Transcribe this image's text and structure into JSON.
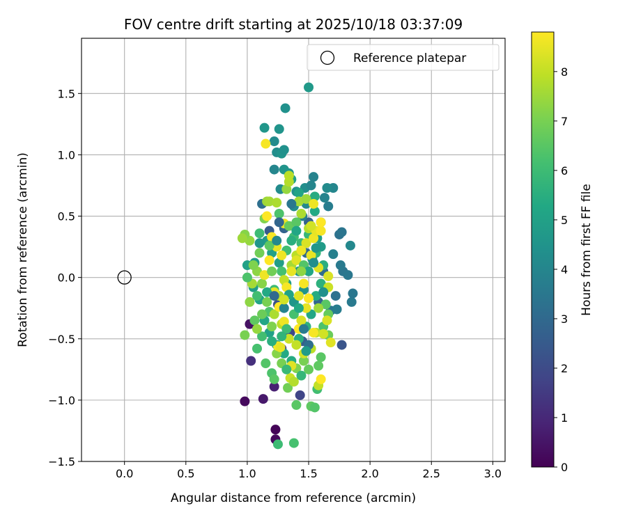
{
  "chart_data": {
    "type": "scatter",
    "title": "FOV centre drift starting at 2025/10/18 03:37:09",
    "xlabel": "Angular distance from reference (arcmin)",
    "ylabel": "Rotation from reference (arcmin)",
    "xlim": [
      -0.35,
      3.1
    ],
    "ylim": [
      -1.5,
      1.95
    ],
    "xticks": [
      0.0,
      0.5,
      1.0,
      1.5,
      2.0,
      2.5,
      3.0
    ],
    "xtick_labels": [
      "0.0",
      "0.5",
      "1.0",
      "1.5",
      "2.0",
      "2.5",
      "3.0"
    ],
    "yticks": [
      -1.5,
      -1.0,
      -0.5,
      0.0,
      0.5,
      1.0,
      1.5
    ],
    "ytick_labels": [
      "−1.5",
      "−1.0",
      "−0.5",
      "0.0",
      "0.5",
      "1.0",
      "1.5"
    ],
    "grid": true,
    "legend": {
      "placement": "top-right",
      "label": "Reference platepar"
    },
    "reference_point": {
      "x": 0.0,
      "y": 0.0
    },
    "colorbar": {
      "label": "Hours from first FF file",
      "colormap": "viridis",
      "range": [
        0,
        8.8
      ],
      "ticks": [
        0,
        1,
        2,
        3,
        4,
        5,
        6,
        7,
        8
      ],
      "tick_labels": [
        "0",
        "1",
        "2",
        "3",
        "4",
        "5",
        "6",
        "7",
        "8"
      ]
    },
    "points": [
      [
        0.98,
        -1.01,
        0.2
      ],
      [
        1.23,
        -1.24,
        0.1
      ],
      [
        1.23,
        -1.32,
        0.2
      ],
      [
        1.13,
        -0.99,
        0.6
      ],
      [
        1.02,
        -0.38,
        0.4
      ],
      [
        1.03,
        -0.68,
        1.2
      ],
      [
        1.22,
        -0.89,
        0.8
      ],
      [
        1.43,
        -0.96,
        1.8
      ],
      [
        1.77,
        -0.55,
        2.3
      ],
      [
        1.28,
        -0.58,
        1.5
      ],
      [
        1.35,
        -0.45,
        1.9
      ],
      [
        1.45,
        -0.52,
        2.6
      ],
      [
        1.25,
        -0.22,
        2.2
      ],
      [
        1.18,
        0.38,
        2.5
      ],
      [
        1.12,
        0.6,
        3.2
      ],
      [
        1.3,
        0.4,
        2.8
      ],
      [
        1.5,
        0.45,
        2.7
      ],
      [
        1.58,
        -0.2,
        2.9
      ],
      [
        1.62,
        0.05,
        3.1
      ],
      [
        1.48,
        0.2,
        3.0
      ],
      [
        1.75,
        0.35,
        3.3
      ],
      [
        1.78,
        0.05,
        3.4
      ],
      [
        1.82,
        0.02,
        3.5
      ],
      [
        1.85,
        -0.2,
        3.6
      ],
      [
        1.86,
        -0.13,
        3.5
      ],
      [
        1.72,
        -0.15,
        3.3
      ],
      [
        1.68,
        -0.27,
        3.5
      ],
      [
        1.73,
        -0.26,
        3.7
      ],
      [
        1.76,
        0.1,
        3.6
      ],
      [
        1.7,
        0.19,
        3.8
      ],
      [
        1.77,
        0.37,
        3.4
      ],
      [
        1.84,
        0.26,
        4.1
      ],
      [
        1.63,
        0.65,
        3.9
      ],
      [
        1.66,
        0.58,
        3.7
      ],
      [
        1.7,
        0.73,
        4.0
      ],
      [
        1.65,
        0.73,
        4.2
      ],
      [
        1.48,
        0.6,
        4.1
      ],
      [
        1.45,
        0.5,
        3.8
      ],
      [
        1.38,
        0.58,
        4.2
      ],
      [
        1.4,
        0.7,
        4.4
      ],
      [
        1.47,
        0.73,
        4.3
      ],
      [
        1.52,
        0.75,
        4.0
      ],
      [
        1.54,
        0.82,
        3.9
      ],
      [
        1.27,
        0.72,
        4.2
      ],
      [
        1.3,
        0.88,
        4.5
      ],
      [
        1.34,
        0.85,
        4.6
      ],
      [
        1.22,
        0.88,
        4.0
      ],
      [
        1.24,
        1.02,
        4.3
      ],
      [
        1.28,
        1.01,
        4.5
      ],
      [
        1.3,
        1.04,
        4.4
      ],
      [
        1.22,
        1.11,
        4.2
      ],
      [
        1.26,
        1.21,
        4.5
      ],
      [
        1.14,
        1.22,
        4.6
      ],
      [
        1.31,
        1.38,
        4.4
      ],
      [
        1.5,
        1.55,
        4.7
      ],
      [
        1.36,
        0.8,
        5.0
      ],
      [
        1.42,
        0.69,
        5.1
      ],
      [
        1.55,
        0.66,
        5.4
      ],
      [
        1.55,
        0.54,
        5.3
      ],
      [
        1.6,
        0.45,
        5.0
      ],
      [
        1.57,
        0.32,
        4.9
      ],
      [
        1.6,
        0.25,
        4.8
      ],
      [
        1.53,
        0.15,
        4.7
      ],
      [
        1.42,
        0.05,
        4.6
      ],
      [
        1.46,
        -0.1,
        4.5
      ],
      [
        1.38,
        -0.2,
        4.6
      ],
      [
        1.32,
        -0.05,
        4.8
      ],
      [
        1.26,
        0.12,
        4.9
      ],
      [
        1.2,
        0.2,
        5.0
      ],
      [
        1.16,
        0.3,
        4.7
      ],
      [
        1.1,
        0.28,
        4.6
      ],
      [
        1.06,
        0.12,
        4.8
      ],
      [
        1.0,
        0.1,
        5.0
      ],
      [
        1.05,
        -0.08,
        4.9
      ],
      [
        1.1,
        -0.18,
        5.1
      ],
      [
        1.14,
        -0.35,
        5.2
      ],
      [
        1.18,
        -0.45,
        5.0
      ],
      [
        1.24,
        -0.55,
        4.8
      ],
      [
        1.3,
        -0.62,
        5.3
      ],
      [
        1.36,
        -0.68,
        5.4
      ],
      [
        1.42,
        -0.5,
        5.5
      ],
      [
        1.48,
        -0.4,
        5.6
      ],
      [
        1.52,
        -0.3,
        5.2
      ],
      [
        1.56,
        -0.15,
        5.4
      ],
      [
        1.6,
        -0.05,
        5.6
      ],
      [
        1.62,
        0.1,
        5.5
      ],
      [
        1.56,
        0.2,
        5.7
      ],
      [
        1.5,
        0.35,
        5.8
      ],
      [
        1.44,
        0.28,
        5.9
      ],
      [
        1.38,
        0.33,
        6.0
      ],
      [
        1.32,
        0.22,
        6.1
      ],
      [
        1.28,
        0.05,
        6.2
      ],
      [
        1.22,
        -0.1,
        6.0
      ],
      [
        1.18,
        -0.28,
        6.3
      ],
      [
        1.12,
        -0.48,
        6.1
      ],
      [
        1.08,
        -0.58,
        6.2
      ],
      [
        1.15,
        -0.7,
        6.4
      ],
      [
        1.2,
        -0.78,
        6.3
      ],
      [
        1.22,
        -0.83,
        6.5
      ],
      [
        1.25,
        -1.36,
        6.0
      ],
      [
        1.38,
        -1.35,
        6.2
      ],
      [
        1.4,
        -1.04,
        6.5
      ],
      [
        1.52,
        -1.05,
        6.6
      ],
      [
        1.55,
        -1.06,
        6.4
      ],
      [
        1.57,
        -0.91,
        6.1
      ],
      [
        1.6,
        -0.65,
        6.5
      ],
      [
        1.58,
        -0.72,
        6.6
      ],
      [
        1.62,
        -0.4,
        6.3
      ],
      [
        1.64,
        -0.22,
        6.5
      ],
      [
        1.66,
        -0.3,
        6.7
      ],
      [
        1.66,
        -0.47,
        6.8
      ],
      [
        1.5,
        -0.75,
        6.7
      ],
      [
        1.46,
        -0.68,
        7.0
      ],
      [
        1.4,
        -0.74,
        7.1
      ],
      [
        1.33,
        -0.9,
        6.9
      ],
      [
        1.28,
        -0.7,
        7.0
      ],
      [
        1.24,
        -0.62,
        7.2
      ],
      [
        1.2,
        -0.4,
        7.1
      ],
      [
        1.16,
        -0.2,
        7.0
      ],
      [
        1.12,
        -0.05,
        7.2
      ],
      [
        1.08,
        0.05,
        7.3
      ],
      [
        1.02,
        0.3,
        7.4
      ],
      [
        0.98,
        0.35,
        7.2
      ],
      [
        0.96,
        0.32,
        7.5
      ],
      [
        1.05,
        0.1,
        7.1
      ],
      [
        0.98,
        -0.47,
        7.0
      ],
      [
        1.02,
        -0.2,
        7.3
      ],
      [
        1.14,
        0.48,
        7.1
      ],
      [
        1.16,
        0.62,
        7.5
      ],
      [
        1.18,
        0.62,
        7.6
      ],
      [
        1.24,
        0.61,
        7.7
      ],
      [
        1.32,
        0.72,
        7.4
      ],
      [
        1.34,
        0.78,
        7.8
      ],
      [
        1.34,
        0.83,
        7.9
      ],
      [
        1.42,
        0.62,
        7.6
      ],
      [
        1.48,
        0.64,
        7.5
      ],
      [
        1.44,
        0.52,
        7.7
      ],
      [
        1.5,
        0.4,
        7.8
      ],
      [
        1.4,
        0.18,
        7.9
      ],
      [
        1.36,
        0.1,
        7.6
      ],
      [
        1.3,
        -0.02,
        8.0
      ],
      [
        1.26,
        -0.15,
        7.8
      ],
      [
        1.22,
        -0.3,
        7.7
      ],
      [
        1.28,
        -0.38,
        7.9
      ],
      [
        1.34,
        -0.5,
        8.1
      ],
      [
        1.4,
        -0.55,
        8.0
      ],
      [
        1.46,
        -0.62,
        8.2
      ],
      [
        1.52,
        -0.58,
        7.9
      ],
      [
        1.56,
        -0.45,
        7.8
      ],
      [
        1.58,
        -0.88,
        8.0
      ],
      [
        1.35,
        -0.82,
        8.1
      ],
      [
        1.38,
        -0.85,
        7.8
      ],
      [
        1.65,
        -0.35,
        8.3
      ],
      [
        1.68,
        -0.53,
        8.4
      ],
      [
        1.62,
        -0.46,
        8.2
      ],
      [
        1.66,
        0.01,
        8.3
      ],
      [
        1.66,
        -0.08,
        8.1
      ],
      [
        1.58,
        0.08,
        8.4
      ],
      [
        1.52,
        0.18,
        8.5
      ],
      [
        1.48,
        0.28,
        8.3
      ],
      [
        1.44,
        0.22,
        8.6
      ],
      [
        1.4,
        0.14,
        8.4
      ],
      [
        1.36,
        0.05,
        8.5
      ],
      [
        1.32,
        -0.08,
        8.7
      ],
      [
        1.28,
        0.18,
        8.6
      ],
      [
        1.24,
        0.25,
        8.5
      ],
      [
        1.2,
        0.33,
        8.7
      ],
      [
        1.18,
        0.14,
        8.8
      ],
      [
        1.14,
        0.02,
        8.6
      ],
      [
        1.22,
        -0.12,
        8.5
      ],
      [
        1.26,
        -0.24,
        8.8
      ],
      [
        1.3,
        -0.36,
        8.6
      ],
      [
        1.25,
        -0.56,
        8.7
      ],
      [
        1.27,
        -0.57,
        8.5
      ],
      [
        1.42,
        -0.15,
        8.4
      ],
      [
        1.46,
        -0.05,
        8.7
      ],
      [
        1.5,
        -0.17,
        8.8
      ],
      [
        1.54,
        0.32,
        8.6
      ],
      [
        1.56,
        0.38,
        8.5
      ],
      [
        1.6,
        0.38,
        8.7
      ],
      [
        1.6,
        0.45,
        8.8
      ],
      [
        1.54,
        0.6,
        8.6
      ],
      [
        1.15,
        1.09,
        8.7
      ],
      [
        1.16,
        0.5,
        8.8
      ],
      [
        1.3,
        0.44,
        8.6
      ],
      [
        1.42,
        -0.42,
        8.8
      ],
      [
        1.48,
        -0.25,
        8.5
      ],
      [
        1.44,
        -0.35,
        8.3
      ],
      [
        1.36,
        -0.72,
        8.4
      ],
      [
        1.6,
        -0.83,
        8.8
      ],
      [
        1.54,
        -0.45,
        8.7
      ],
      [
        1.12,
        -0.3,
        6.8
      ],
      [
        1.06,
        -0.35,
        6.6
      ],
      [
        1.2,
        0.05,
        6.9
      ],
      [
        1.34,
        0.42,
        6.7
      ],
      [
        1.4,
        0.45,
        6.5
      ],
      [
        1.46,
        0.1,
        6.4
      ],
      [
        1.38,
        -0.3,
        6.2
      ],
      [
        1.32,
        -0.42,
        6.0
      ],
      [
        1.44,
        -0.8,
        5.8
      ],
      [
        1.26,
        0.52,
        6.3
      ],
      [
        1.18,
        0.26,
        6.6
      ],
      [
        1.08,
        -0.15,
        6.1
      ],
      [
        1.1,
        0.36,
        6.0
      ],
      [
        1.28,
        -0.48,
        5.7
      ],
      [
        1.36,
        0.3,
        5.5
      ],
      [
        1.42,
        -0.25,
        5.3
      ],
      [
        1.5,
        0.05,
        5.2
      ],
      [
        1.2,
        -0.52,
        5.5
      ],
      [
        1.16,
        -0.12,
        5.3
      ],
      [
        1.34,
        -0.14,
        5.1
      ],
      [
        1.4,
        0.38,
        5.2
      ],
      [
        1.56,
        0.24,
        4.6
      ],
      [
        1.62,
        -0.12,
        4.4
      ],
      [
        1.24,
        0.3,
        4.1
      ],
      [
        1.3,
        -0.25,
        3.9
      ],
      [
        1.46,
        -0.42,
        3.6
      ],
      [
        1.36,
        0.6,
        3.5
      ],
      [
        1.5,
        -0.55,
        3.2
      ],
      [
        1.22,
        -0.15,
        3.0
      ],
      [
        1.26,
        0.45,
        2.9
      ],
      [
        1.54,
        0.12,
        4.3
      ],
      [
        1.48,
        -0.6,
        4.8
      ],
      [
        1.32,
        -0.75,
        5.9
      ],
      [
        1.1,
        0.2,
        6.9
      ],
      [
        1.04,
        -0.05,
        7.6
      ],
      [
        1.0,
        0.0,
        6.3
      ],
      [
        1.08,
        -0.42,
        7.4
      ],
      [
        1.3,
        -0.18,
        8.2
      ],
      [
        1.52,
        0.42,
        8.2
      ],
      [
        1.58,
        -0.25,
        7.5
      ],
      [
        1.44,
        0.05,
        7.3
      ]
    ]
  }
}
